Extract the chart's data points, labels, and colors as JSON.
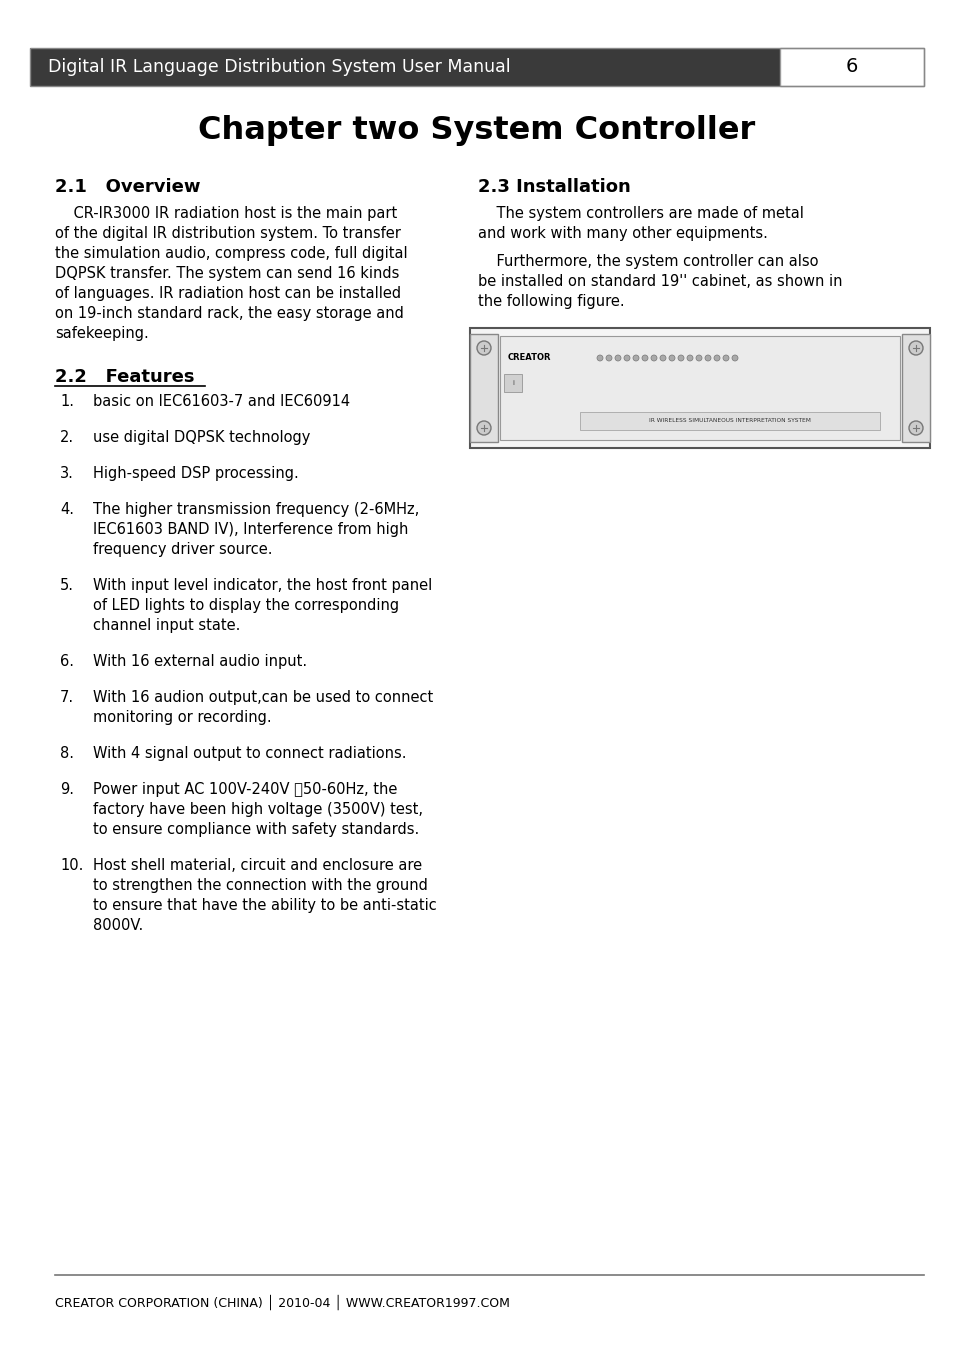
{
  "header_text": "Digital IR Language Distribution System User Manual",
  "header_page": "6",
  "header_bg": "#3a3a3a",
  "header_fg": "#ffffff",
  "title": "Chapter two System Controller",
  "footer_line_color": "#777777",
  "footer_text": "CREATOR CORPORATION (CHINA) │ 2010-04 │ WWW.CREATOR1997.COM",
  "bg_color": "#ffffff"
}
